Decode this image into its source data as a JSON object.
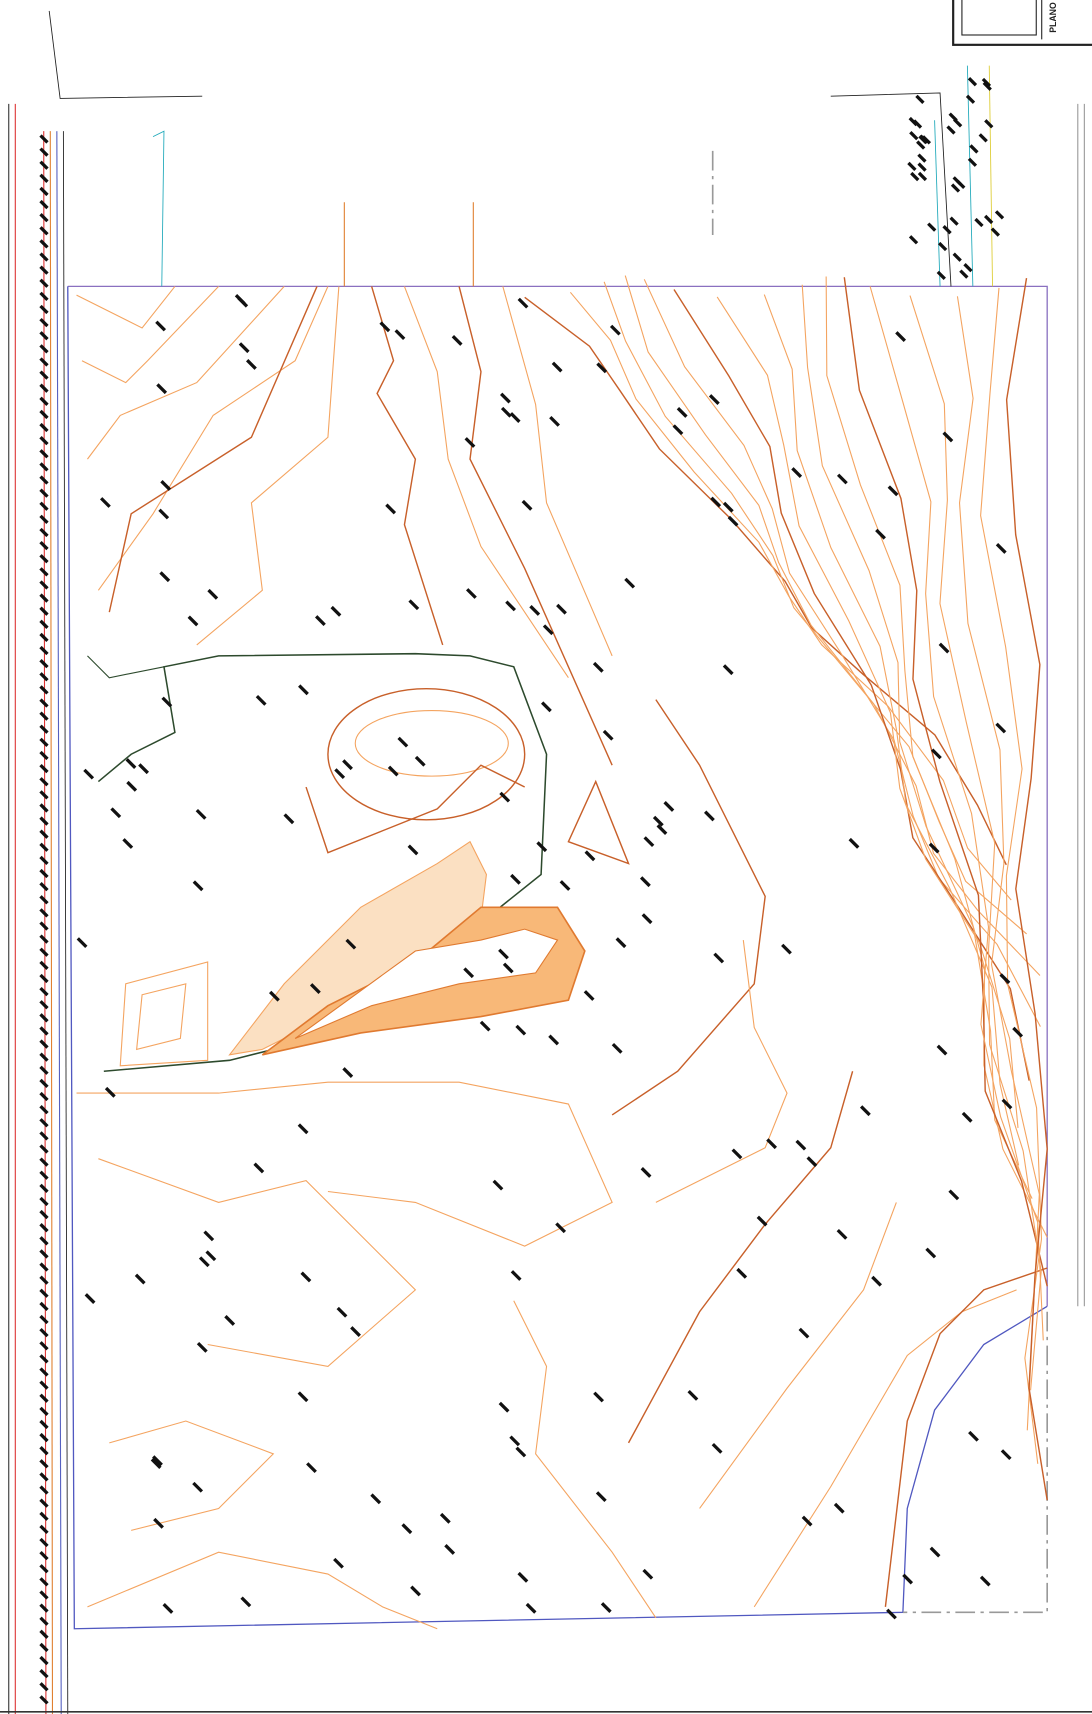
{
  "title_block": {
    "label": "PLANO"
  }
}
